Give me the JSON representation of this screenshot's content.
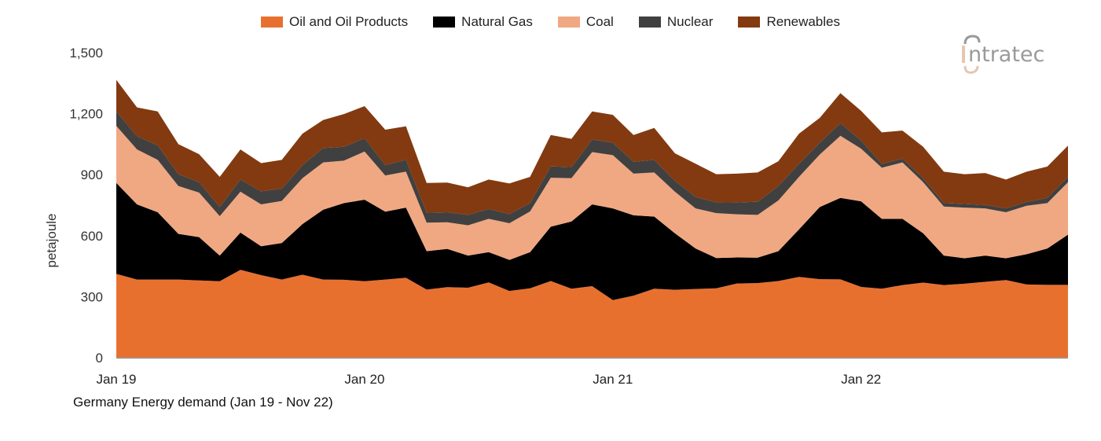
{
  "chart_data": {
    "type": "area",
    "stacked": true,
    "title": "Germany Energy demand (Jan 19 - Nov 22)",
    "xlabel": "",
    "ylabel": "petajoule",
    "ylim": [
      0,
      1500
    ],
    "yticks": [
      "0",
      "300",
      "600",
      "900",
      "1,200",
      "1,500"
    ],
    "ytick_values": [
      0,
      300,
      600,
      900,
      1200,
      1500
    ],
    "xticks": [
      "Jan 19",
      "Jan 20",
      "Jan 21",
      "Jan 22"
    ],
    "xtick_index": [
      0,
      12,
      24,
      36
    ],
    "grid": false,
    "legend_position": "top",
    "categories": [
      "Jan 19",
      "Feb 19",
      "Mar 19",
      "Apr 19",
      "May 19",
      "Jun 19",
      "Jul 19",
      "Aug 19",
      "Sep 19",
      "Oct 19",
      "Nov 19",
      "Dec 19",
      "Jan 20",
      "Feb 20",
      "Mar 20",
      "Apr 20",
      "May 20",
      "Jun 20",
      "Jul 20",
      "Aug 20",
      "Sep 20",
      "Oct 20",
      "Nov 20",
      "Dec 20",
      "Jan 21",
      "Feb 21",
      "Mar 21",
      "Apr 21",
      "May 21",
      "Jun 21",
      "Jul 21",
      "Aug 21",
      "Sep 21",
      "Oct 21",
      "Nov 21",
      "Dec 21",
      "Jan 22",
      "Feb 22",
      "Mar 22",
      "Apr 22",
      "May 22",
      "Jun 22",
      "Jul 22",
      "Aug 22",
      "Sep 22",
      "Oct 22",
      "Nov 22"
    ],
    "series": [
      {
        "name": "Oil and Oil Products",
        "color": "#E8702F",
        "values": [
          412,
          384,
          384,
          384,
          380,
          376,
          432,
          406,
          384,
          408,
          384,
          383,
          376,
          384,
          393,
          335,
          347,
          344,
          370,
          328,
          341,
          377,
          339,
          352,
          283,
          305,
          339,
          334,
          338,
          341,
          365,
          367,
          377,
          397,
          386,
          385,
          348,
          339,
          357,
          369,
          357,
          364,
          373,
          382,
          360,
          358,
          358
        ]
      },
      {
        "name": "Natural Gas",
        "color": "#000000",
        "values": [
          447,
          370,
          331,
          225,
          213,
          126,
          183,
          142,
          180,
          249,
          344,
          377,
          401,
          334,
          345,
          189,
          188,
          158,
          149,
          153,
          178,
          267,
          331,
          402,
          451,
          395,
          355,
          278,
          199,
          149,
          128,
          125,
          147,
          234,
          355,
          401,
          421,
          344,
          326,
          243,
          145,
          125,
          129,
          107,
          149,
          179,
          247
        ]
      },
      {
        "name": "Coal",
        "color": "#F0A882",
        "values": [
          281,
          270,
          258,
          235,
          219,
          194,
          201,
          206,
          207,
          226,
          232,
          209,
          237,
          178,
          177,
          140,
          131,
          149,
          164,
          180,
          200,
          241,
          213,
          257,
          262,
          205,
          217,
          204,
          197,
          221,
          212,
          210,
          249,
          258,
          258,
          305,
          259,
          251,
          277,
          251,
          241,
          249,
          232,
          226,
          238,
          223,
          258
        ]
      },
      {
        "name": "Nuclear",
        "color": "#404040",
        "values": [
          71,
          65,
          71,
          58,
          51,
          45,
          60,
          64,
          60,
          64,
          71,
          68,
          65,
          51,
          58,
          49,
          49,
          51,
          48,
          45,
          41,
          56,
          54,
          62,
          61,
          58,
          62,
          54,
          56,
          53,
          58,
          65,
          71,
          65,
          58,
          62,
          40,
          19,
          19,
          19,
          17,
          18,
          17,
          19,
          19,
          26,
          26
        ]
      },
      {
        "name": "Renewables",
        "color": "#833A10",
        "values": [
          155,
          142,
          167,
          148,
          138,
          148,
          148,
          139,
          142,
          155,
          138,
          161,
          158,
          174,
          165,
          146,
          146,
          136,
          145,
          151,
          129,
          154,
          139,
          138,
          137,
          132,
          157,
          135,
          164,
          138,
          142,
          144,
          122,
          148,
          122,
          148,
          146,
          155,
          138,
          155,
          155,
          146,
          157,
          142,
          149,
          154,
          154
        ]
      }
    ]
  },
  "logo": {
    "text": "intratec"
  }
}
